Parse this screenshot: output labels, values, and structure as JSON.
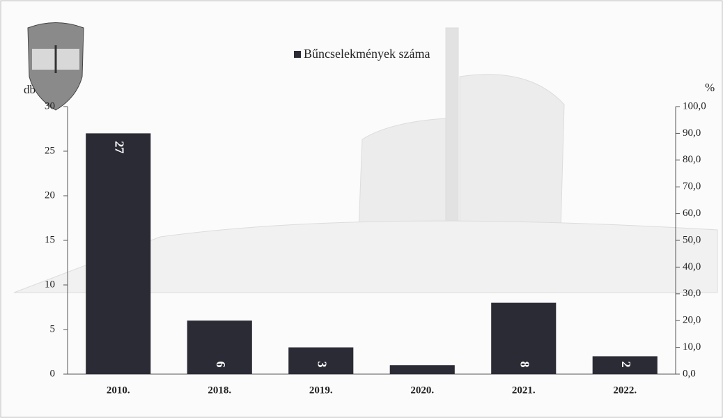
{
  "chart_data": {
    "type": "bar",
    "legend": "Bűncselekmények száma",
    "y_label": "db",
    "y2_label": "%",
    "categories": [
      "2010.",
      "2018.",
      "2019.",
      "2020.",
      "2021.",
      "2022."
    ],
    "values": [
      27,
      6,
      3,
      1,
      8,
      2
    ],
    "value_labels": [
      "27",
      "6",
      "3",
      null,
      "8",
      "2"
    ],
    "color": "#2b2b36",
    "ylim": [
      0,
      30
    ],
    "yticks": [
      0,
      5,
      10,
      15,
      20,
      25,
      30
    ],
    "y2lim": [
      0,
      100
    ],
    "y2ticks": [
      {
        "value": 0,
        "label": "0,0"
      },
      {
        "value": 10,
        "label": "10,0"
      },
      {
        "value": 20,
        "label": "20,0"
      },
      {
        "value": 30,
        "label": "30,0"
      },
      {
        "value": 40,
        "label": "40,0"
      },
      {
        "value": 50,
        "label": "50,0"
      },
      {
        "value": 60,
        "label": "60,0"
      },
      {
        "value": 70,
        "label": "70,0"
      },
      {
        "value": 80,
        "label": "80,0"
      },
      {
        "value": 90,
        "label": "90,0"
      },
      {
        "value": {
          "value": 100,
          "label": "100,0"
        },
        "label": "100,0"
      }
    ]
  }
}
